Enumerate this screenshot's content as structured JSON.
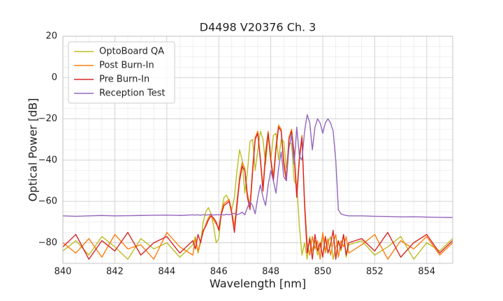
{
  "chart_data": {
    "type": "line",
    "title": "D4498 V20376 Ch. 3",
    "x_label": "Wavelength [nm]",
    "y_label": "Optical Power [dB]",
    "x": [
      840,
      840.5,
      841,
      841.5,
      842,
      842.5,
      843,
      843.5,
      844,
      844.5,
      845,
      845.1,
      845.2,
      845.3,
      845.4,
      845.5,
      845.6,
      845.7,
      845.8,
      845.9,
      846,
      846.1,
      846.2,
      846.3,
      846.4,
      846.5,
      846.6,
      846.7,
      846.8,
      846.9,
      847,
      847.1,
      847.2,
      847.3,
      847.4,
      847.5,
      847.6,
      847.7,
      847.8,
      847.9,
      848,
      848.1,
      848.2,
      848.3,
      848.4,
      848.5,
      848.6,
      848.7,
      848.8,
      848.9,
      849,
      849.1,
      849.2,
      849.3,
      849.4,
      849.5,
      849.6,
      849.7,
      849.8,
      849.9,
      850,
      850.1,
      850.2,
      850.3,
      850.4,
      850.5,
      850.6,
      850.7,
      850.8,
      850.9,
      851,
      851.5,
      852,
      852.5,
      853,
      853.5,
      854,
      854.5,
      855
    ],
    "series": [
      {
        "name": "OptoBoard QA",
        "color": "#bcbd22",
        "values": [
          -84,
          -79,
          -86,
          -77,
          -82,
          -88,
          -78,
          -83,
          -80,
          -87,
          -81,
          -77,
          -85,
          -80,
          -70,
          -65,
          -63,
          -66,
          -72,
          -80,
          -78,
          -65,
          -58,
          -57,
          -60,
          -64,
          -58,
          -45,
          -35,
          -40,
          -56,
          -46,
          -31,
          -30,
          -45,
          -35,
          -26,
          -30,
          -42,
          -27,
          -40,
          -28,
          -27,
          -40,
          -30,
          -31,
          -44,
          -32,
          -32,
          -50,
          -52,
          -72,
          -86,
          -80,
          -88,
          -77,
          -84,
          -79,
          -86,
          -82,
          -76,
          -85,
          -80,
          -77,
          -88,
          -82,
          -79,
          -84,
          -76,
          -87,
          -81,
          -79,
          -86,
          -82,
          -77,
          -88,
          -80,
          -84,
          -78
        ]
      },
      {
        "name": "Post Burn-In",
        "color": "#ff7f0e",
        "values": [
          -80,
          -85,
          -78,
          -87,
          -76,
          -83,
          -81,
          -88,
          -75,
          -82,
          -86,
          -78,
          -84,
          -79,
          -75,
          -71,
          -68,
          -66,
          -69,
          -71,
          -73,
          -65,
          -61,
          -60,
          -59,
          -65,
          -72,
          -60,
          -48,
          -41,
          -44,
          -56,
          -62,
          -44,
          -29,
          -26,
          -39,
          -53,
          -36,
          -26,
          -39,
          -48,
          -33,
          -23,
          -25,
          -40,
          -48,
          -29,
          -25,
          -36,
          -56,
          -38,
          -28,
          -60,
          -80,
          -86,
          -77,
          -83,
          -79,
          -88,
          -75,
          -84,
          -78,
          -86,
          -80,
          -76,
          -87,
          -79,
          -82,
          -77,
          -85,
          -81,
          -76,
          -88,
          -79,
          -83,
          -77,
          -86,
          -80
        ]
      },
      {
        "name": "Pre Burn-In",
        "color": "#d62728",
        "values": [
          -82,
          -76,
          -88,
          -79,
          -84,
          -75,
          -86,
          -80,
          -77,
          -85,
          -79,
          -83,
          -76,
          -80,
          -74,
          -72,
          -69,
          -67,
          -68,
          -70,
          -74,
          -66,
          -62,
          -61,
          -60,
          -66,
          -75,
          -62,
          -50,
          -43,
          -45,
          -58,
          -64,
          -46,
          -30,
          -27,
          -40,
          -55,
          -38,
          -27,
          -40,
          -50,
          -35,
          -24,
          -26,
          -42,
          -50,
          -30,
          -26,
          -38,
          -58,
          -40,
          -29,
          -62,
          -85,
          -78,
          -88,
          -76,
          -84,
          -80,
          -87,
          -77,
          -85,
          -81,
          -74,
          -88,
          -79,
          -83,
          -76,
          -86,
          -80,
          -78,
          -84,
          -75,
          -87,
          -80,
          -76,
          -85,
          -79
        ]
      },
      {
        "name": "Reception Test",
        "color": "#9467bd",
        "values": [
          -67,
          -67.2,
          -67,
          -66.8,
          -67,
          -66.9,
          -66.8,
          -66.7,
          -66.6,
          -66.8,
          -66.5,
          -66.6,
          -66.5,
          -66.7,
          -66.4,
          -66.6,
          -66.5,
          -66.3,
          -66.6,
          -66.4,
          -66.5,
          -66.3,
          -66.6,
          -66.2,
          -66.5,
          -66,
          -65.8,
          -66.4,
          -66,
          -65.2,
          -66.5,
          -63,
          -60,
          -62,
          -66,
          -58,
          -52,
          -58,
          -62,
          -52,
          -45,
          -50,
          -56,
          -44,
          -36,
          -48,
          -50,
          -34,
          -28,
          -42,
          -24,
          -38,
          -40,
          -26,
          -18,
          -22,
          -35,
          -24,
          -20,
          -22,
          -27,
          -22,
          -20,
          -22,
          -26,
          -40,
          -64,
          -66,
          -66.5,
          -66.8,
          -67,
          -67,
          -67.2,
          -67.3,
          -67.5,
          -67.4,
          -67.6,
          -67.7,
          -67.8
        ]
      }
    ],
    "xlim": [
      840,
      855
    ],
    "xticks": [
      840,
      842,
      844,
      846,
      848,
      850,
      852,
      854
    ],
    "ylim": [
      -90,
      20
    ],
    "yticks": [
      {
        "value": -80,
        "label": "−80"
      },
      {
        "value": -60,
        "label": "−60"
      },
      {
        "value": -40,
        "label": "−40"
      },
      {
        "value": -20,
        "label": "−20"
      },
      0,
      20
    ],
    "grid": true,
    "legend": "upper left"
  }
}
